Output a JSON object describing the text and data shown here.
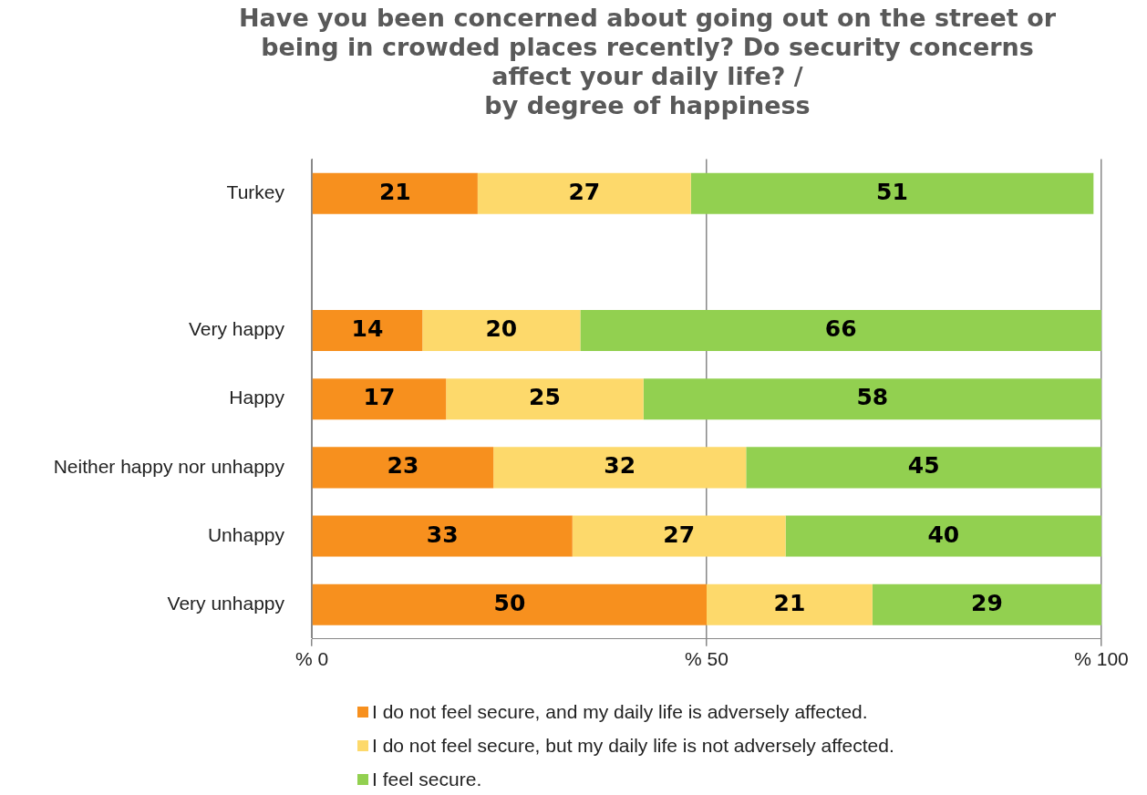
{
  "chart_data": {
    "type": "bar",
    "orientation": "horizontal",
    "stacked": true,
    "title": "Have you been concerned about going out on the street or being in crowded places recently? Do security concerns affect your daily life?  /",
    "subtitle": "by degree of happiness",
    "categories": [
      "Turkey",
      null,
      "Very happy",
      "Happy",
      "Neither happy nor unhappy",
      "Unhappy",
      "Very unhappy"
    ],
    "series": [
      {
        "name": "I do not feel secure, and my daily life is adversely affected.",
        "color": "#f7901e",
        "values": [
          21,
          null,
          14,
          17,
          23,
          33,
          50
        ]
      },
      {
        "name": "I do not feel secure, but my daily life is not adversely affected.",
        "color": "#fdd96b",
        "values": [
          27,
          null,
          20,
          25,
          32,
          27,
          21
        ]
      },
      {
        "name": "I feel secure.",
        "color": "#92d050",
        "values": [
          51,
          null,
          66,
          58,
          45,
          40,
          29
        ]
      }
    ],
    "xlim": [
      0,
      100
    ],
    "xticks": [
      {
        "value": 0,
        "label": "% 0"
      },
      {
        "value": 50,
        "label": "% 50"
      },
      {
        "value": 100,
        "label": "% 100"
      }
    ],
    "grid": "x",
    "legend": "bottom",
    "data_labels": true
  }
}
